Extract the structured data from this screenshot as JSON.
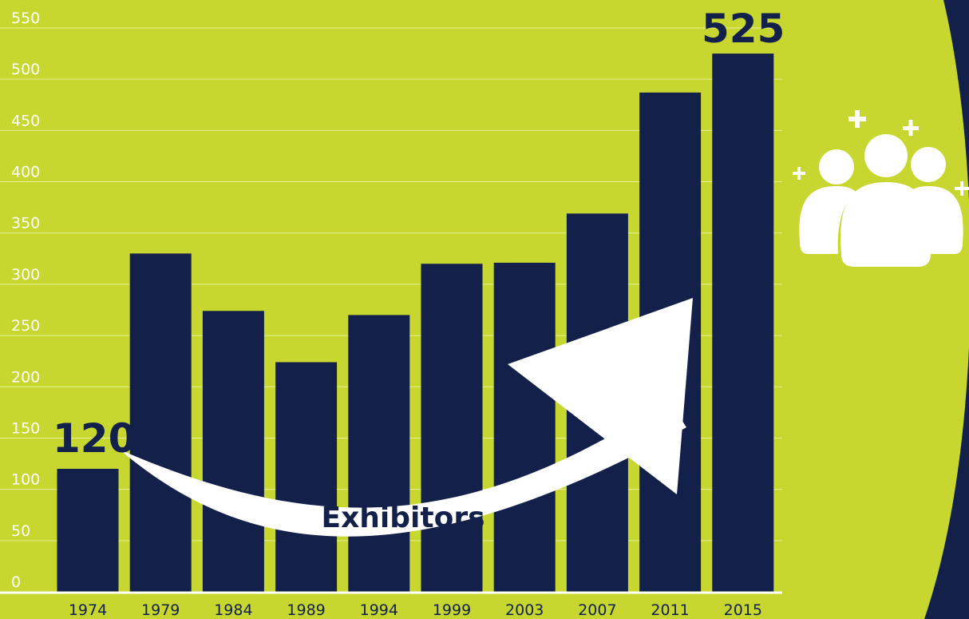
{
  "colors": {
    "background": "#c7d730",
    "bar": "#13204a",
    "dark_panel": "#13204a",
    "grid": "#e6ef9a",
    "arrow": "#ffffff",
    "icon": "#ffffff"
  },
  "icon": "people-plus-icon",
  "arrow_label": "Exhibitors",
  "callouts": {
    "start": "120",
    "end": "525"
  },
  "chart_data": {
    "type": "bar",
    "title": "",
    "xlabel": "",
    "ylabel": "",
    "categories": [
      "1974",
      "1979",
      "1984",
      "1989",
      "1994",
      "1999",
      "2003",
      "2007",
      "2011",
      "2015"
    ],
    "values": [
      120,
      330,
      274,
      224,
      270,
      320,
      321,
      369,
      487,
      525
    ],
    "ylim": [
      0,
      550
    ],
    "yticks": [
      "0",
      "50",
      "100",
      "150",
      "200",
      "250",
      "300",
      "350",
      "400",
      "450",
      "500",
      "550"
    ],
    "grid": true,
    "legend": "none",
    "annotations": [
      "120",
      "525",
      "Exhibitors"
    ]
  }
}
